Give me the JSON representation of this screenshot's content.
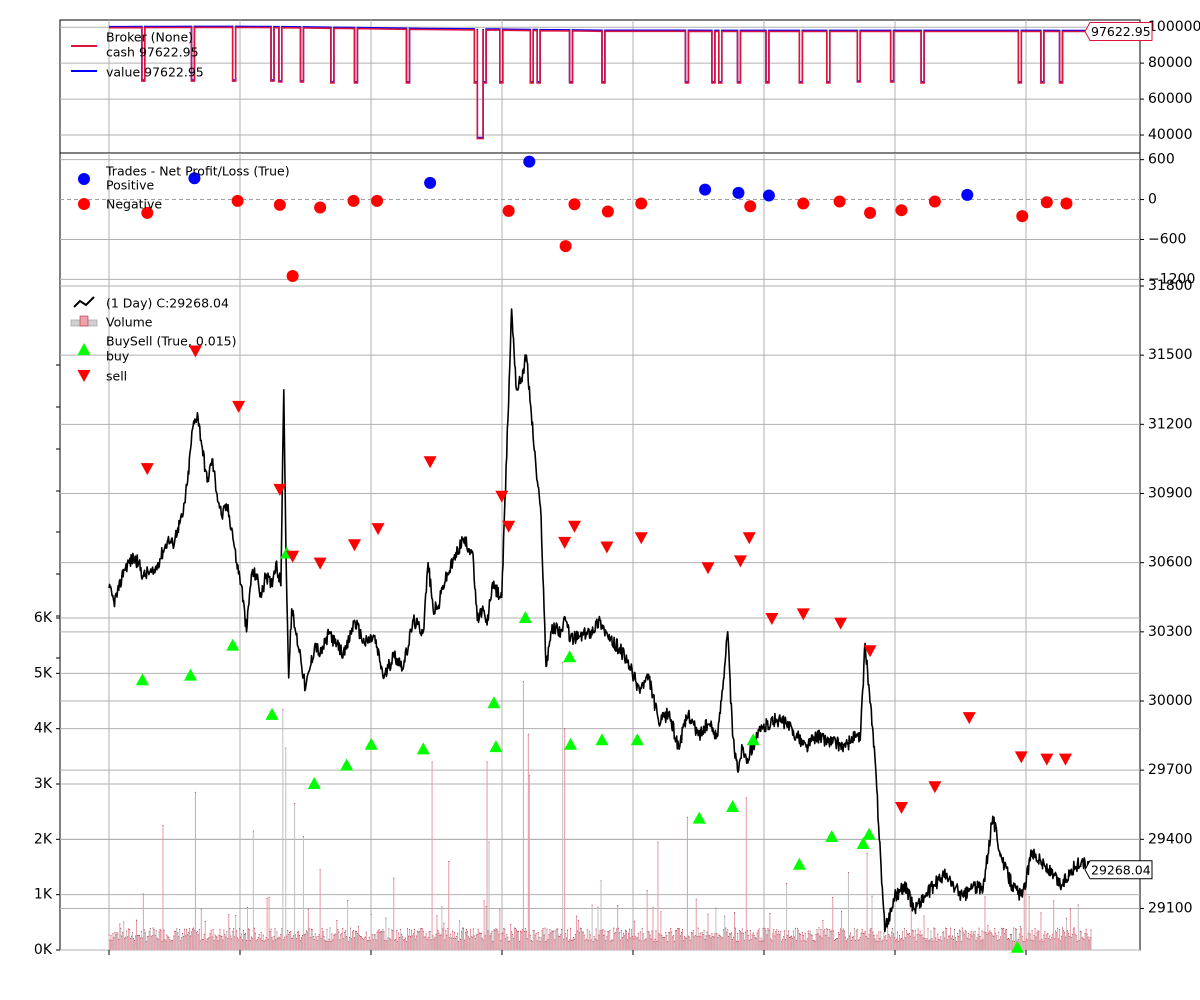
{
  "chart_data": [
    {
      "type": "line",
      "panel": "broker",
      "ylim": [
        30000,
        104000
      ],
      "yticks": [
        40000,
        60000,
        80000,
        100000
      ],
      "ytick_labels": [
        "40000",
        "60000",
        "80000",
        "100000"
      ],
      "legend": {
        "title": "Broker (None)",
        "entries": [
          {
            "label": "cash 97622.95",
            "color": "#dc143c"
          },
          {
            "label": "value 97622.95",
            "color": "#0000ff"
          }
        ]
      },
      "last_value_label": "97622.95",
      "series": [
        {
          "name": "cash",
          "color": "#dc143c",
          "baseline_x": [
            0,
            62,
            100,
            131,
            200,
            320,
            392,
            430,
            480,
            500,
            1000
          ],
          "baseline_y": [
            99700,
            99800,
            99900,
            99900,
            99600,
            98700,
            98400,
            98100,
            97900,
            97700,
            97622.95
          ],
          "dips": [
            {
              "x0": 33.5,
              "x1": 36.5,
              "y": 70000
            },
            {
              "x0": 84,
              "x1": 87,
              "y": 70000
            },
            {
              "x0": 126,
              "x1": 129,
              "y": 70000
            },
            {
              "x0": 165,
              "x1": 168,
              "y": 70000
            },
            {
              "x0": 173,
              "x1": 176,
              "y": 69500
            },
            {
              "x0": 195,
              "x1": 198,
              "y": 69500
            },
            {
              "x0": 226,
              "x1": 229,
              "y": 69000
            },
            {
              "x0": 250,
              "x1": 253,
              "y": 69000
            },
            {
              "x0": 303,
              "x1": 306,
              "y": 69000
            },
            {
              "x0": 372,
              "x1": 375,
              "y": 69000
            },
            {
              "x0": 375,
              "x1": 381,
              "y": 38000
            },
            {
              "x0": 381,
              "x1": 384,
              "y": 69000
            },
            {
              "x0": 398,
              "x1": 401,
              "y": 69000
            },
            {
              "x0": 429,
              "x1": 432,
              "y": 69000
            },
            {
              "x0": 436,
              "x1": 439,
              "y": 69000
            },
            {
              "x0": 469,
              "x1": 472,
              "y": 69000
            },
            {
              "x0": 502,
              "x1": 505,
              "y": 69000
            },
            {
              "x0": 587,
              "x1": 590,
              "y": 69000
            },
            {
              "x0": 614,
              "x1": 617,
              "y": 69000
            },
            {
              "x0": 621,
              "x1": 624,
              "y": 69000
            },
            {
              "x0": 640,
              "x1": 643,
              "y": 69000
            },
            {
              "x0": 669,
              "x1": 672,
              "y": 69000
            },
            {
              "x0": 703,
              "x1": 706,
              "y": 69000
            },
            {
              "x0": 731,
              "x1": 734,
              "y": 69000
            },
            {
              "x0": 762,
              "x1": 765,
              "y": 69500
            },
            {
              "x0": 796,
              "x1": 799,
              "y": 69500
            },
            {
              "x0": 827,
              "x1": 830,
              "y": 69000
            },
            {
              "x0": 926,
              "x1": 929,
              "y": 69000
            },
            {
              "x0": 949,
              "x1": 952,
              "y": 69000
            },
            {
              "x0": 968,
              "x1": 971,
              "y": 69000
            }
          ]
        },
        {
          "name": "value",
          "color": "#0000ff",
          "follows": "cash"
        }
      ]
    },
    {
      "type": "scatter",
      "panel": "trades",
      "ylim": [
        -1300,
        700
      ],
      "yticks": [
        -1200,
        -600,
        0,
        600
      ],
      "ytick_labels": [
        "−1200",
        "−600",
        "0",
        "600"
      ],
      "legend": {
        "title": "Trades - Net Profit/Loss (True)",
        "entries": [
          {
            "label": "Positive",
            "color": "#0000ff"
          },
          {
            "label": "Negative",
            "color": "#ff0000"
          }
        ]
      },
      "series": [
        {
          "name": "Positive",
          "color": "#0000ff",
          "x": [
            87,
            327,
            428,
            607,
            641,
            672,
            874
          ],
          "y": [
            320,
            250,
            570,
            150,
            100,
            60,
            70
          ]
        },
        {
          "name": "Negative",
          "color": "#ff0000",
          "x": [
            39,
            131,
            174,
            187,
            215,
            249,
            273,
            407,
            465,
            474,
            508,
            542,
            653,
            707,
            744,
            775,
            807,
            841,
            930,
            955,
            975
          ],
          "y": [
            -200,
            -20,
            -80,
            -1150,
            -120,
            -20,
            -20,
            -170,
            -700,
            -70,
            -180,
            -60,
            -100,
            -60,
            -30,
            -200,
            -160,
            -30,
            -250,
            -40,
            -60
          ]
        }
      ]
    },
    {
      "type": "line",
      "panel": "price",
      "ylim": [
        28920,
        31800
      ],
      "yticks": [
        29100,
        29400,
        29700,
        30000,
        30300,
        30600,
        30900,
        31200,
        31500,
        31800
      ],
      "ytick_labels": [
        "29100",
        "29400",
        "29700",
        "30000",
        "30300",
        "30600",
        "30900",
        "31200",
        "31500",
        "31800"
      ],
      "volume_ylim": [
        0,
        12000
      ],
      "volume_yticks": [
        0,
        1000,
        2000,
        3000,
        4000,
        5000,
        6000
      ],
      "volume_ytick_labels": [
        "0K",
        "1K",
        "2K",
        "3K",
        "4K",
        "5K",
        "6K"
      ],
      "legend": {
        "entries": [
          {
            "label": "(1 Day) C:29268.04",
            "color": "#000000",
            "kind": "line"
          },
          {
            "label": "Volume",
            "color": "#f0a0a8",
            "kind": "bar"
          },
          {
            "label": "BuySell (True, 0.015)",
            "color": "",
            "kind": "title"
          },
          {
            "label": "buy",
            "color": "#00ff00",
            "kind": "up"
          },
          {
            "label": "sell",
            "color": "#ff0000",
            "kind": "down"
          }
        ]
      },
      "last_value_label": "29268.04",
      "close": {
        "x": [
          0,
          5,
          10,
          15,
          20,
          25,
          30,
          35,
          40,
          45,
          50,
          55,
          60,
          65,
          70,
          75,
          80,
          85,
          90,
          95,
          100,
          105,
          110,
          115,
          120,
          125,
          130,
          135,
          140,
          145,
          150,
          155,
          160,
          165,
          170,
          175,
          178,
          180,
          183,
          186,
          190,
          195,
          200,
          205,
          210,
          215,
          220,
          225,
          230,
          240,
          250,
          260,
          270,
          280,
          290,
          300,
          310,
          320,
          325,
          330,
          335,
          340,
          350,
          360,
          370,
          375,
          380,
          385,
          390,
          400,
          410,
          415,
          420,
          425,
          430,
          435,
          440,
          445,
          450,
          455,
          460,
          465,
          470,
          480,
          490,
          500,
          510,
          520,
          530,
          540,
          550,
          560,
          570,
          580,
          590,
          600,
          610,
          620,
          630,
          635,
          640,
          645,
          650,
          660,
          670,
          680,
          690,
          700,
          710,
          720,
          730,
          740,
          750,
          760,
          765,
          770,
          780,
          790,
          800,
          810,
          820,
          830,
          840,
          850,
          860,
          870,
          880,
          890,
          900,
          910,
          920,
          930,
          940,
          950,
          960,
          970,
          980,
          990,
          1000
        ],
        "y": [
          30490,
          30430,
          30480,
          30570,
          30600,
          30620,
          30600,
          30540,
          30560,
          30550,
          30600,
          30650,
          30700,
          30680,
          30750,
          30800,
          30950,
          31180,
          31250,
          31100,
          30950,
          31050,
          30900,
          30800,
          30850,
          30750,
          30600,
          30500,
          30300,
          30550,
          30550,
          30450,
          30550,
          30500,
          30600,
          30500,
          31350,
          30700,
          30100,
          30400,
          30300,
          30200,
          30050,
          30150,
          30250,
          30200,
          30250,
          30300,
          30250,
          30200,
          30350,
          30250,
          30280,
          30100,
          30200,
          30150,
          30350,
          30300,
          30600,
          30400,
          30400,
          30500,
          30600,
          30700,
          30650,
          30350,
          30400,
          30330,
          30500,
          30450,
          31700,
          31350,
          31400,
          31500,
          31250,
          31000,
          30800,
          30150,
          30300,
          30320,
          30300,
          30350,
          30270,
          30280,
          30300,
          30350,
          30260,
          30230,
          30150,
          30050,
          30100,
          29900,
          29950,
          29800,
          29950,
          29850,
          29900,
          29850,
          30300,
          29850,
          29700,
          29800,
          29750,
          29850,
          29900,
          29920,
          29900,
          29850,
          29800,
          29850,
          29830,
          29820,
          29800,
          29850,
          29830,
          30250,
          29750,
          29000,
          29150,
          29200,
          29100,
          29150,
          29200,
          29250,
          29200,
          29150,
          29200,
          29180,
          29500,
          29300,
          29200,
          29150,
          29350,
          29300,
          29250,
          29200,
          29270,
          29300,
          29268
        ]
      },
      "volume": {
        "spikes_x": [
          55,
          88,
          147,
          177,
          180,
          189,
          198,
          215,
          290,
          329,
          346,
          385,
          387,
          422,
          427,
          428,
          462,
          464,
          501,
          559,
          589,
          649,
          690,
          753,
          772,
          817,
          932
        ],
        "spikes_y": [
          2250,
          2850,
          2150,
          4350,
          3650,
          2650,
          2050,
          1450,
          1300,
          3400,
          1600,
          3400,
          1950,
          4850,
          3900,
          3150,
          5200,
          4000,
          1250,
          1950,
          2400,
          2750,
          1200,
          1400,
          1750,
          1000,
          1100
        ]
      },
      "buy": {
        "x": [
          34,
          83,
          126,
          166,
          181,
          209,
          242,
          267,
          320,
          392,
          394,
          424,
          469,
          470,
          502,
          538,
          601,
          635,
          656,
          703,
          736,
          768,
          774,
          925
        ],
        "y": [
          30090,
          30110,
          30240,
          29940,
          30640,
          29640,
          29720,
          29810,
          29790,
          29990,
          29800,
          30360,
          30190,
          29810,
          29830,
          29830,
          29490,
          29540,
          29830,
          29290,
          29410,
          29380,
          29420,
          28930
        ]
      },
      "sell": {
        "x": [
          39,
          88,
          132,
          174,
          187,
          215,
          250,
          274,
          327,
          400,
          407,
          464,
          474,
          507,
          542,
          610,
          643,
          652,
          675,
          707,
          745,
          775,
          807,
          841,
          876,
          929,
          955,
          974
        ],
        "y": [
          31010,
          31520,
          31280,
          30920,
          30630,
          30600,
          30680,
          30750,
          31040,
          30890,
          30760,
          30690,
          30760,
          30670,
          30710,
          30580,
          30610,
          30710,
          30360,
          30380,
          30340,
          30220,
          29540,
          29630,
          29930,
          29760,
          29750,
          29750
        ]
      }
    }
  ]
}
